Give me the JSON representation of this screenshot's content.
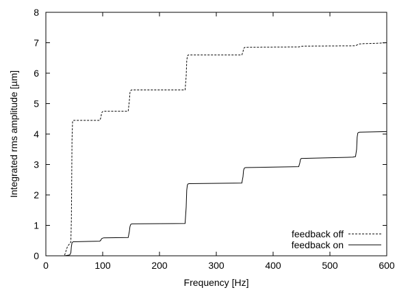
{
  "chart_data": {
    "type": "line",
    "title": "",
    "xlabel": "Frequency [Hz]",
    "ylabel": "Integrated rms amplitude [µm]",
    "xlim": [
      0,
      600
    ],
    "ylim": [
      0,
      8
    ],
    "xticks": [
      0,
      100,
      200,
      300,
      400,
      500,
      600
    ],
    "yticks": [
      0,
      1,
      2,
      3,
      4,
      5,
      6,
      7,
      8
    ],
    "grid": false,
    "legend_position": "bottom-right",
    "series": [
      {
        "name": "feedback off",
        "style": "dashed",
        "color": "#000000",
        "x": [
          33,
          38,
          44,
          45,
          46,
          47,
          48,
          95,
          97,
          98,
          99,
          100,
          101,
          145,
          147,
          148,
          149,
          150,
          151,
          245,
          247,
          248,
          249,
          250,
          251,
          345,
          347,
          348,
          349,
          350,
          352,
          445,
          450,
          455,
          545,
          550,
          552,
          560,
          580,
          600
        ],
        "y": [
          0.02,
          0.3,
          0.45,
          1.2,
          3.8,
          4.4,
          4.45,
          4.45,
          4.55,
          4.68,
          4.72,
          4.74,
          4.75,
          4.75,
          5.1,
          5.35,
          5.42,
          5.44,
          5.45,
          5.45,
          5.9,
          6.4,
          6.55,
          6.59,
          6.6,
          6.6,
          6.7,
          6.8,
          6.83,
          6.85,
          6.85,
          6.86,
          6.88,
          6.89,
          6.9,
          6.95,
          6.96,
          6.97,
          6.98,
          7.0
        ]
      },
      {
        "name": "feedback on",
        "style": "solid",
        "color": "#000000",
        "x": [
          33,
          42,
          44,
          45,
          46,
          48,
          95,
          97,
          98,
          100,
          102,
          145,
          147,
          148,
          149,
          150,
          152,
          245,
          247,
          248,
          249,
          250,
          252,
          345,
          347,
          348,
          349,
          350,
          352,
          445,
          447,
          448,
          449,
          450,
          452,
          540,
          545,
          547,
          548,
          549,
          550,
          552,
          600
        ],
        "y": [
          0.0,
          0.03,
          0.1,
          0.3,
          0.43,
          0.46,
          0.48,
          0.52,
          0.56,
          0.58,
          0.59,
          0.6,
          0.8,
          0.95,
          1.02,
          1.04,
          1.05,
          1.06,
          1.6,
          2.15,
          2.32,
          2.36,
          2.37,
          2.39,
          2.6,
          2.8,
          2.87,
          2.89,
          2.9,
          2.93,
          3.05,
          3.15,
          3.19,
          3.2,
          3.2,
          3.24,
          3.26,
          3.5,
          3.9,
          4.03,
          4.05,
          4.06,
          4.08
        ]
      }
    ]
  }
}
